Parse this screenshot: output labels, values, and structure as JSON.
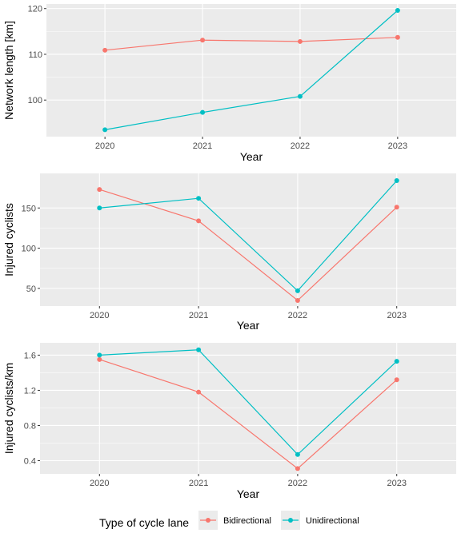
{
  "chart_data": [
    {
      "type": "line",
      "xlabel": "Year",
      "ylabel": "Network length [km]",
      "x": [
        "2020",
        "2021",
        "2022",
        "2023"
      ],
      "ylim": [
        92,
        121
      ],
      "yticks": [
        100,
        110,
        120
      ],
      "ytick_labels": [
        "100",
        "110",
        "120"
      ],
      "grid": true,
      "series": [
        {
          "name": "Bidirectional",
          "color": "#F8766D",
          "values": [
            110.9,
            113.1,
            112.8,
            113.7
          ]
        },
        {
          "name": "Unidirectional",
          "color": "#00BFC4",
          "values": [
            93.5,
            97.3,
            100.8,
            119.6
          ]
        }
      ]
    },
    {
      "type": "line",
      "xlabel": "Year",
      "ylabel": "Injured cyclists",
      "x": [
        "2020",
        "2021",
        "2022",
        "2023"
      ],
      "ylim": [
        28,
        193
      ],
      "yticks": [
        50,
        100,
        150
      ],
      "ytick_labels": [
        "50",
        "100",
        "150"
      ],
      "grid": true,
      "series": [
        {
          "name": "Bidirectional",
          "color": "#F8766D",
          "values": [
            173,
            134,
            35,
            151
          ]
        },
        {
          "name": "Unidirectional",
          "color": "#00BFC4",
          "values": [
            150,
            162,
            47,
            184
          ]
        }
      ]
    },
    {
      "type": "line",
      "xlabel": "Year",
      "ylabel": "Injured cyclists/km",
      "x": [
        "2020",
        "2021",
        "2022",
        "2023"
      ],
      "ylim": [
        0.25,
        1.74
      ],
      "yticks": [
        0.4,
        0.8,
        1.2,
        1.6
      ],
      "ytick_labels": [
        "0.4",
        "0.8",
        "1.2",
        "1.6"
      ],
      "grid": true,
      "series": [
        {
          "name": "Bidirectional",
          "color": "#F8766D",
          "values": [
            1.55,
            1.18,
            0.31,
            1.32
          ]
        },
        {
          "name": "Unidirectional",
          "color": "#00BFC4",
          "values": [
            1.6,
            1.66,
            0.47,
            1.53
          ]
        }
      ]
    }
  ],
  "legend": {
    "title": "Type of cycle lane",
    "position": "bottom",
    "items": [
      {
        "label": "Bidirectional",
        "color": "#F8766D"
      },
      {
        "label": "Unidirectional",
        "color": "#00BFC4"
      }
    ]
  }
}
